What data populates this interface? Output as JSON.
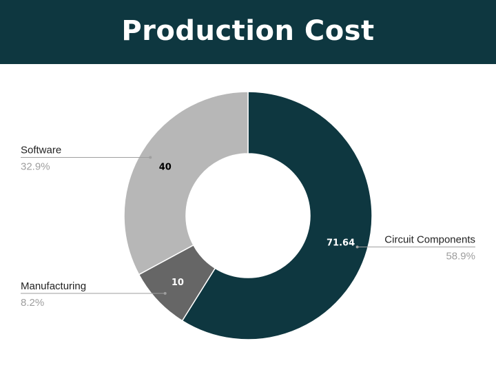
{
  "header": {
    "title": "Production Cost",
    "background": "#0e3740"
  },
  "chart_data": {
    "type": "pie",
    "variant": "donut",
    "title": "Production Cost",
    "start_angle_deg": 0,
    "direction": "clockwise",
    "slices": [
      {
        "label": "Circuit Components",
        "value": 71.64,
        "percent_label": "58.9%",
        "value_label": "71.64",
        "color": "#0e3740",
        "value_text_color": "#ffffff",
        "legend_side": "right"
      },
      {
        "label": "Manufacturing",
        "value": 10,
        "percent_label": "8.2%",
        "value_label": "10",
        "color": "#666666",
        "value_text_color": "#ffffff",
        "legend_side": "left"
      },
      {
        "label": "Software",
        "value": 40,
        "percent_label": "32.9%",
        "value_label": "40",
        "color": "#b7b7b7",
        "value_text_color": "#000000",
        "legend_side": "left"
      }
    ]
  }
}
